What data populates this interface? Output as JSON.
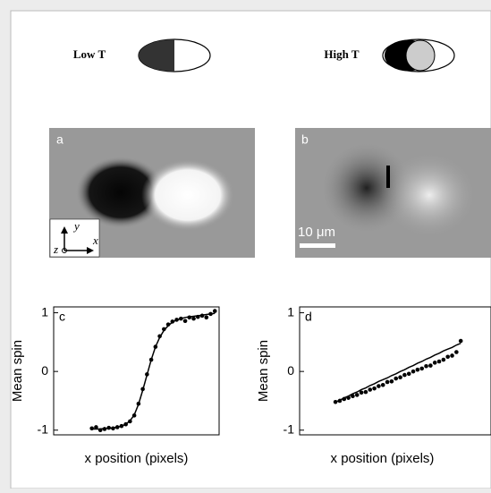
{
  "header": {
    "low": "Low T",
    "high": "High T"
  },
  "images": [
    {
      "label": "a",
      "axis_y": "y",
      "axis_x": "x",
      "axis_z": "z"
    },
    {
      "label": "b",
      "scale": "10 μm"
    }
  ],
  "chart_data": [
    {
      "type": "scatter",
      "label": "c",
      "ylabel": "Mean spin",
      "xlabel": "x position (pixels)",
      "x": [
        1,
        2,
        3,
        4,
        5,
        6,
        7,
        8,
        9,
        10,
        11,
        12,
        13,
        14,
        15,
        16,
        17,
        18,
        19,
        20,
        21,
        22,
        23,
        24,
        25,
        26,
        27,
        28,
        29,
        30
      ],
      "series": [
        {
          "style": "markers",
          "color": "#000000",
          "values": [
            -0.97,
            -0.95,
            -1.0,
            -0.98,
            -0.96,
            -0.97,
            -0.95,
            -0.93,
            -0.9,
            -0.85,
            -0.75,
            -0.55,
            -0.3,
            -0.05,
            0.2,
            0.42,
            0.6,
            0.72,
            0.8,
            0.85,
            0.88,
            0.9,
            0.86,
            0.92,
            0.9,
            0.93,
            0.95,
            0.92,
            0.98,
            1.03
          ]
        },
        {
          "style": "line",
          "color": "#000000",
          "values": [
            -0.98,
            -0.98,
            -0.98,
            -0.97,
            -0.97,
            -0.96,
            -0.95,
            -0.93,
            -0.9,
            -0.84,
            -0.74,
            -0.56,
            -0.32,
            -0.06,
            0.2,
            0.42,
            0.58,
            0.7,
            0.78,
            0.84,
            0.88,
            0.9,
            0.92,
            0.93,
            0.94,
            0.95,
            0.96,
            0.97,
            0.98,
            0.99
          ]
        }
      ],
      "xlim": [
        -8,
        31
      ],
      "ylim": [
        -1.08,
        1.1
      ],
      "yticks": [
        -1,
        0,
        1
      ]
    },
    {
      "type": "scatter",
      "label": "d",
      "ylabel": "Mean spin",
      "xlabel": "x position (pixels)",
      "x": [
        1,
        2,
        3,
        4,
        5,
        6,
        7,
        8,
        9,
        10,
        11,
        12,
        13,
        14,
        15,
        16,
        17,
        18,
        19,
        20,
        21,
        22,
        23,
        24,
        25,
        26,
        27,
        28,
        29,
        30
      ],
      "series": [
        {
          "style": "markers",
          "color": "#000000",
          "values": [
            -0.52,
            -0.5,
            -0.47,
            -0.45,
            -0.42,
            -0.4,
            -0.36,
            -0.35,
            -0.31,
            -0.29,
            -0.25,
            -0.23,
            -0.18,
            -0.17,
            -0.12,
            -0.1,
            -0.06,
            -0.04,
            0.0,
            0.03,
            0.05,
            0.09,
            0.1,
            0.15,
            0.17,
            0.2,
            0.25,
            0.27,
            0.33,
            0.52
          ]
        },
        {
          "style": "line",
          "color": "#000000",
          "values": [
            -0.52,
            -0.49,
            -0.45,
            -0.42,
            -0.38,
            -0.35,
            -0.31,
            -0.28,
            -0.24,
            -0.21,
            -0.17,
            -0.14,
            -0.11,
            -0.07,
            -0.04,
            0.0,
            0.03,
            0.07,
            0.1,
            0.14,
            0.17,
            0.21,
            0.24,
            0.28,
            0.31,
            0.35,
            0.38,
            0.41,
            0.45,
            0.48
          ]
        }
      ],
      "xlim": [
        -7.3,
        37
      ],
      "ylim": [
        -1.08,
        1.1
      ],
      "yticks": [
        -1,
        0,
        1
      ]
    }
  ]
}
